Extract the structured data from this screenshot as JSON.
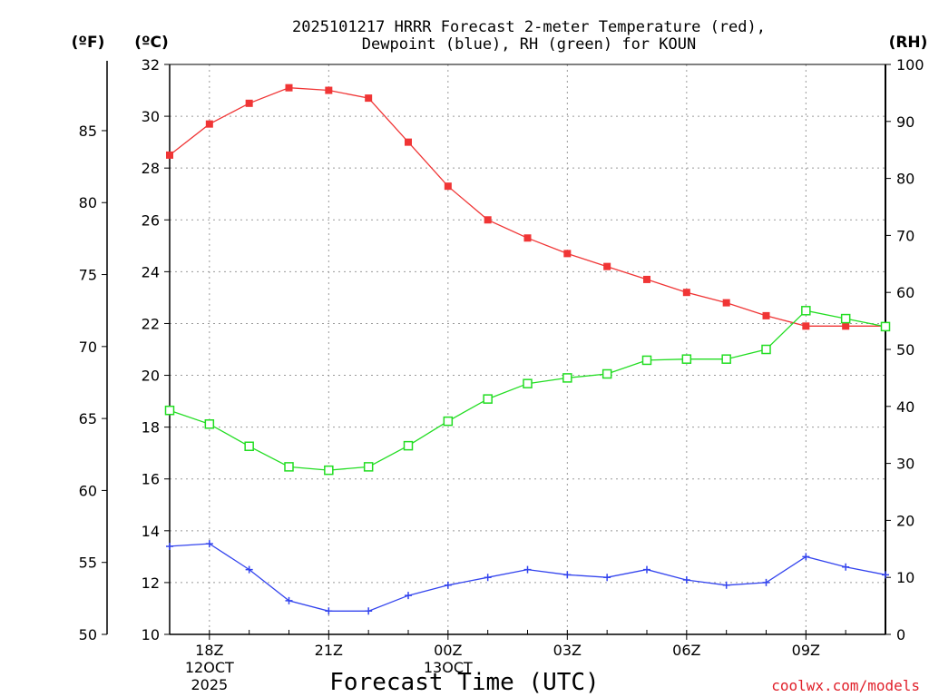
{
  "chart_data": {
    "type": "line",
    "title_line1": "2025101217 HRRR Forecast 2-meter Temperature (red),",
    "title_line2": "Dewpoint (blue), RH (green) for KOUN",
    "unit_f": "(ºF)",
    "unit_c": "(ºC)",
    "unit_rh": "(RH)",
    "xlabel": "Forecast Time (UTC)",
    "credit": "coolwx.com/models",
    "grid": true,
    "x_hours": [
      17,
      18,
      19,
      20,
      21,
      22,
      23,
      24,
      25,
      26,
      27,
      28,
      29,
      30,
      31,
      32,
      33,
      34,
      35
    ],
    "xlim": [
      17,
      35
    ],
    "ylim_c": [
      10,
      32
    ],
    "ylim_f": [
      50,
      89.6
    ],
    "ylim_rh": [
      0,
      100
    ],
    "yticks_c": [
      "10",
      "12",
      "14",
      "16",
      "18",
      "20",
      "22",
      "24",
      "26",
      "28",
      "30",
      "32"
    ],
    "yticks_f": [
      "50",
      "55",
      "60",
      "65",
      "70",
      "75",
      "80",
      "85"
    ],
    "yticks_rh": [
      "0",
      "10",
      "20",
      "30",
      "40",
      "50",
      "60",
      "70",
      "80",
      "90",
      "100"
    ],
    "xticks": [
      {
        "h": 18,
        "label": "18Z",
        "sub1": "12OCT",
        "sub2": "2025"
      },
      {
        "h": 21,
        "label": "21Z",
        "sub1": "",
        "sub2": ""
      },
      {
        "h": 24,
        "label": "00Z",
        "sub1": "13OCT",
        "sub2": ""
      },
      {
        "h": 27,
        "label": "03Z",
        "sub1": "",
        "sub2": ""
      },
      {
        "h": 30,
        "label": "06Z",
        "sub1": "",
        "sub2": ""
      },
      {
        "h": 33,
        "label": "09Z",
        "sub1": "",
        "sub2": ""
      }
    ],
    "series": [
      {
        "name": "Temperature",
        "axis": "C",
        "color": "#f03535",
        "marker": "filled-square",
        "values": [
          28.5,
          29.7,
          30.5,
          31.1,
          31.0,
          30.7,
          29.0,
          27.3,
          26.0,
          25.3,
          24.7,
          24.2,
          23.7,
          23.2,
          22.8,
          22.3,
          21.9,
          21.9,
          21.9
        ]
      },
      {
        "name": "Dewpoint",
        "axis": "C",
        "color": "#3344ee",
        "marker": "plus",
        "values": [
          13.4,
          13.5,
          12.5,
          11.3,
          10.9,
          10.9,
          11.5,
          11.9,
          12.2,
          12.5,
          12.3,
          12.2,
          12.5,
          12.1,
          11.9,
          12.0,
          13.0,
          12.6,
          12.3
        ]
      },
      {
        "name": "Relative Humidity",
        "axis": "RH",
        "color": "#22dd22",
        "marker": "open-square",
        "values": [
          39.3,
          36.9,
          33.0,
          29.4,
          28.8,
          29.4,
          33.1,
          37.4,
          41.3,
          44.0,
          45.0,
          45.7,
          48.1,
          48.3,
          48.3,
          50.0,
          56.8,
          55.4,
          54.0
        ]
      }
    ]
  }
}
